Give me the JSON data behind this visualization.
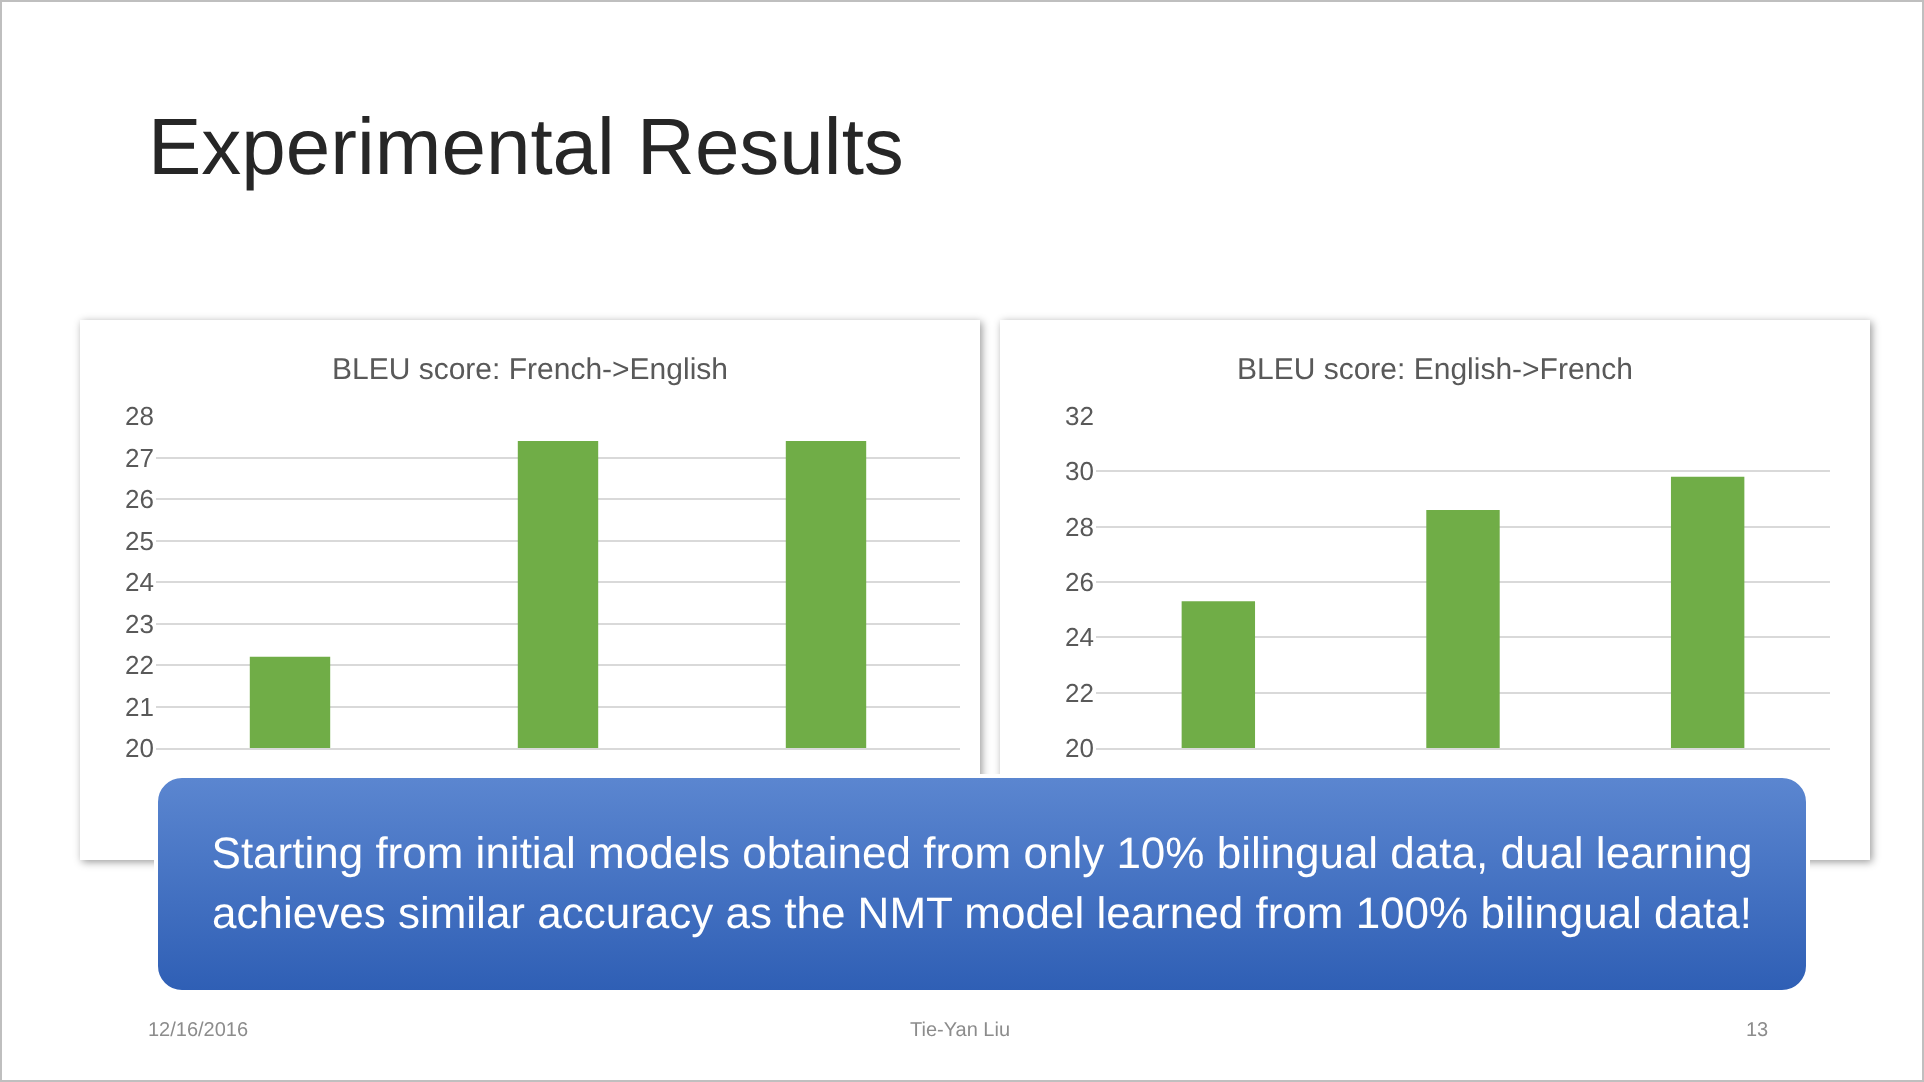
{
  "chart_data": [
    {
      "type": "bar",
      "title": "BLEU score: French->English",
      "categories": [
        null,
        null,
        null
      ],
      "values": [
        22.2,
        27.4,
        27.4
      ],
      "color": "#70ad47",
      "ylim": [
        20,
        28
      ],
      "yticks": [
        20,
        21,
        22,
        23,
        24,
        25,
        26,
        27,
        28
      ],
      "grid": "y",
      "tick_labels": "y",
      "annotations": [
        "Experimental Results",
        "Starting from initial models obtained from only 10% bilingual data, dual learning achieves similar accuracy as the NMT model learned from 100% bilingual data!",
        "12/16/2016",
        "Tie-Yan Liu",
        "13"
      ]
    },
    {
      "type": "bar",
      "title": "BLEU score: English->French",
      "categories": [
        null,
        null,
        null
      ],
      "values": [
        25.3,
        28.6,
        29.8
      ],
      "color": "#70ad47",
      "ylim": [
        20,
        32
      ],
      "yticks": [
        20,
        22,
        24,
        26,
        28,
        30,
        32
      ],
      "grid": "y",
      "tick_labels": "y"
    }
  ]
}
